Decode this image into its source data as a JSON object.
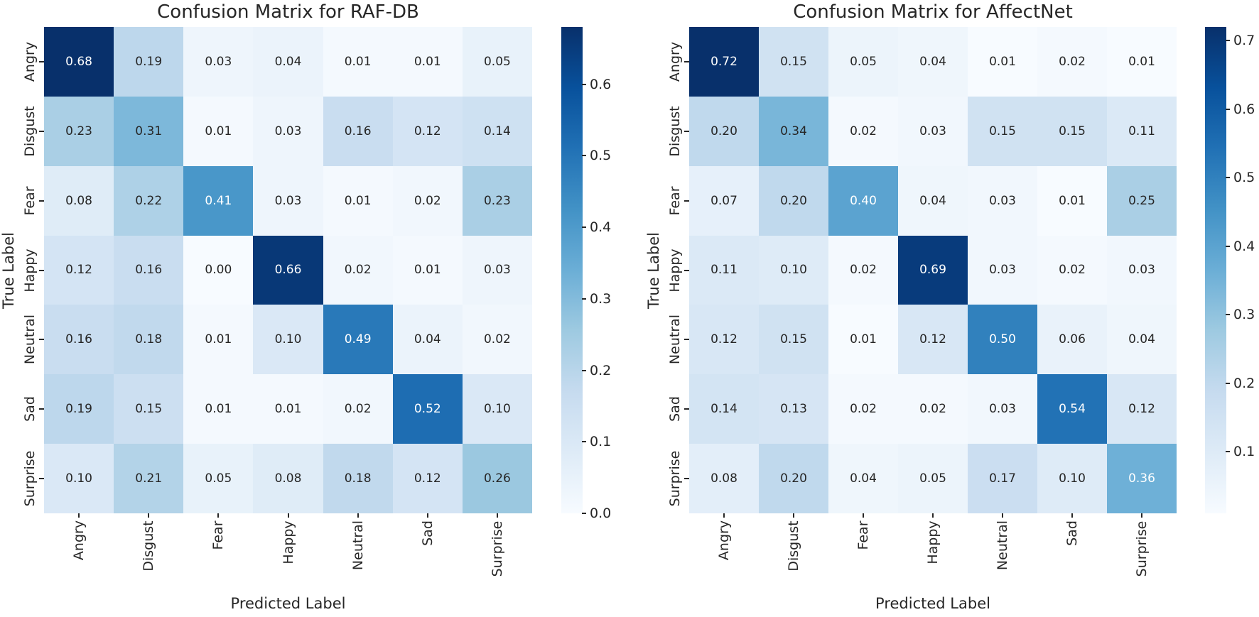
{
  "chart_data": [
    {
      "type": "heatmap",
      "title": "Confusion Matrix for RAF-DB",
      "xlabel": "Predicted Label",
      "ylabel": "True Label",
      "x_categories": [
        "Angry",
        "Disgust",
        "Fear",
        "Happy",
        "Neutral",
        "Sad",
        "Surprise"
      ],
      "y_categories": [
        "Angry",
        "Disgust",
        "Fear",
        "Happy",
        "Neutral",
        "Sad",
        "Surprise"
      ],
      "values": [
        [
          0.68,
          0.19,
          0.03,
          0.04,
          0.01,
          0.01,
          0.05
        ],
        [
          0.23,
          0.31,
          0.01,
          0.03,
          0.16,
          0.12,
          0.14
        ],
        [
          0.08,
          0.22,
          0.41,
          0.03,
          0.01,
          0.02,
          0.23
        ],
        [
          0.12,
          0.16,
          0.0,
          0.66,
          0.02,
          0.01,
          0.03
        ],
        [
          0.16,
          0.18,
          0.01,
          0.1,
          0.49,
          0.04,
          0.02
        ],
        [
          0.19,
          0.15,
          0.01,
          0.01,
          0.02,
          0.52,
          0.1
        ],
        [
          0.1,
          0.21,
          0.05,
          0.08,
          0.18,
          0.12,
          0.26
        ]
      ],
      "value_decimals": 2,
      "vmin": 0.0,
      "vmax": 0.68,
      "colormap": "Blues",
      "colorbar_ticks": [
        0.0,
        0.1,
        0.2,
        0.3,
        0.4,
        0.5,
        0.6
      ],
      "grid": false,
      "legend": "colorbar-right"
    },
    {
      "type": "heatmap",
      "title": "Confusion Matrix for AffectNet",
      "xlabel": "Predicted Label",
      "ylabel": "True Label",
      "x_categories": [
        "Angry",
        "Disgust",
        "Fear",
        "Happy",
        "Neutral",
        "Sad",
        "Surprise"
      ],
      "y_categories": [
        "Angry",
        "Disgust",
        "Fear",
        "Happy",
        "Neutral",
        "Sad",
        "Surprise"
      ],
      "values": [
        [
          0.72,
          0.15,
          0.05,
          0.04,
          0.01,
          0.02,
          0.01
        ],
        [
          0.2,
          0.34,
          0.02,
          0.03,
          0.15,
          0.15,
          0.11
        ],
        [
          0.07,
          0.2,
          0.4,
          0.04,
          0.03,
          0.01,
          0.25
        ],
        [
          0.11,
          0.1,
          0.02,
          0.69,
          0.03,
          0.02,
          0.03
        ],
        [
          0.12,
          0.15,
          0.01,
          0.12,
          0.5,
          0.06,
          0.04
        ],
        [
          0.14,
          0.13,
          0.02,
          0.02,
          0.03,
          0.54,
          0.12
        ],
        [
          0.08,
          0.2,
          0.04,
          0.05,
          0.17,
          0.1,
          0.36
        ]
      ],
      "value_decimals": 2,
      "vmin": 0.01,
      "vmax": 0.72,
      "colormap": "Blues",
      "colorbar_ticks": [
        0.1,
        0.2,
        0.3,
        0.4,
        0.5,
        0.6,
        0.7
      ],
      "grid": false,
      "legend": "colorbar-right"
    }
  ],
  "colors": {
    "background": "#ffffff",
    "colormap_stops": [
      "#f7fbff",
      "#deebf7",
      "#c6dbef",
      "#9ecae1",
      "#6baed6",
      "#4292c6",
      "#2171b5",
      "#08519c",
      "#08306b"
    ],
    "annotation_dark": "#262626",
    "annotation_light": "#ffffff",
    "tick_color": "#262626"
  }
}
